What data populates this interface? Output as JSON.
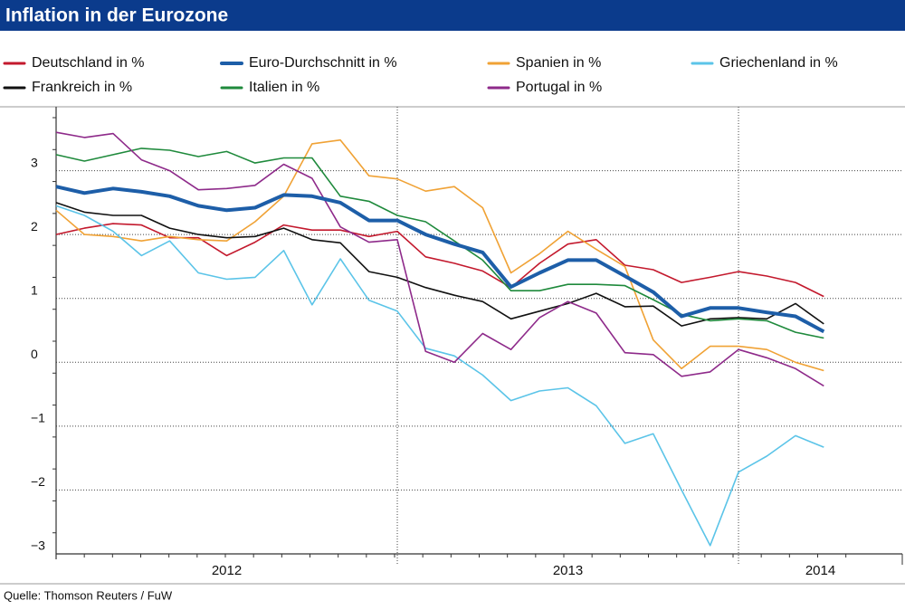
{
  "chart_data": {
    "type": "line",
    "title": "Inflation in der Eurozone",
    "source": "Quelle: Thomson Reuters / FuW",
    "legend_position": "top",
    "x": [
      2012,
      2012.083,
      2012.167,
      2012.25,
      2012.333,
      2012.417,
      2012.5,
      2012.583,
      2012.667,
      2012.75,
      2012.833,
      2012.917,
      2013,
      2013.083,
      2013.167,
      2013.25,
      2013.333,
      2013.417,
      2013.5,
      2013.583,
      2013.667,
      2013.75,
      2013.833,
      2013.917,
      2014,
      2014.083,
      2014.167,
      2014.25
    ],
    "xlim": [
      2012,
      2014.48
    ],
    "xticks": [
      2013,
      2014
    ],
    "year_labels": [
      {
        "value": 2012.5,
        "label": "2012"
      },
      {
        "value": 2013.5,
        "label": "2013"
      },
      {
        "value": 2014.24,
        "label": "2014"
      }
    ],
    "ylim": [
      -3,
      4
    ],
    "yticks": [
      {
        "value": -3,
        "label": "−3"
      },
      {
        "value": -2,
        "label": "−2"
      },
      {
        "value": -1,
        "label": "−1"
      },
      0,
      1,
      2,
      3
    ],
    "grid": true,
    "series": [
      {
        "name": "Deutschland in %",
        "color": "#c3192d",
        "width": 1.6,
        "values": [
          2.0,
          2.1,
          2.17,
          2.15,
          1.95,
          1.95,
          1.67,
          1.88,
          2.15,
          2.07,
          2.07,
          1.97,
          2.05,
          1.65,
          1.55,
          1.43,
          1.17,
          1.55,
          1.85,
          1.92,
          1.52,
          1.45,
          1.25,
          1.33,
          1.42,
          1.35,
          1.25,
          1.03
        ]
      },
      {
        "name": "Euro-Durchschnitt in %",
        "color": "#1d5ea8",
        "width": 4,
        "values": [
          2.75,
          2.65,
          2.72,
          2.67,
          2.6,
          2.45,
          2.38,
          2.42,
          2.62,
          2.6,
          2.5,
          2.22,
          2.22,
          2.0,
          1.85,
          1.72,
          1.18,
          1.4,
          1.6,
          1.6,
          1.35,
          1.1,
          0.72,
          0.85,
          0.85,
          0.78,
          0.72,
          0.48
        ]
      },
      {
        "name": "Spanien in %",
        "color": "#f0a235",
        "width": 1.6,
        "values": [
          2.38,
          2.0,
          1.97,
          1.9,
          1.97,
          1.92,
          1.9,
          2.2,
          2.6,
          3.42,
          3.48,
          2.92,
          2.87,
          2.68,
          2.75,
          2.42,
          1.4,
          1.7,
          2.05,
          1.77,
          1.5,
          0.35,
          -0.1,
          0.25,
          0.25,
          0.2,
          0.0,
          -0.13
        ]
      },
      {
        "name": "Griechenland in %",
        "color": "#5bc4e8",
        "width": 1.6,
        "values": [
          2.45,
          2.3,
          2.05,
          1.67,
          1.9,
          1.4,
          1.3,
          1.33,
          1.75,
          0.9,
          1.62,
          0.97,
          0.8,
          0.22,
          0.1,
          -0.2,
          -0.6,
          -0.45,
          -0.4,
          -0.68,
          -1.27,
          -1.12,
          -2.0,
          -2.87,
          -1.72,
          -1.47,
          -1.15,
          -1.33
        ]
      },
      {
        "name": "Frankreich in %",
        "color": "#111111",
        "width": 1.6,
        "values": [
          2.5,
          2.35,
          2.3,
          2.3,
          2.1,
          2.0,
          1.95,
          1.97,
          2.1,
          1.92,
          1.87,
          1.42,
          1.33,
          1.17,
          1.05,
          0.95,
          0.68,
          0.8,
          0.92,
          1.08,
          0.87,
          0.88,
          0.57,
          0.68,
          0.7,
          0.68,
          0.92,
          0.6
        ]
      },
      {
        "name": "Italien in %",
        "color": "#1f8a3c",
        "width": 1.6,
        "values": [
          3.25,
          3.15,
          3.25,
          3.35,
          3.32,
          3.22,
          3.3,
          3.12,
          3.2,
          3.2,
          2.6,
          2.52,
          2.3,
          2.2,
          1.9,
          1.6,
          1.12,
          1.12,
          1.22,
          1.22,
          1.2,
          0.98,
          0.75,
          0.65,
          0.68,
          0.65,
          0.47,
          0.38
        ]
      },
      {
        "name": "Portugal in %",
        "color": "#8e2a8a",
        "width": 1.6,
        "values": [
          3.6,
          3.52,
          3.58,
          3.17,
          3.0,
          2.7,
          2.72,
          2.77,
          3.1,
          2.88,
          2.12,
          1.88,
          1.92,
          0.17,
          0.0,
          0.45,
          0.2,
          0.7,
          0.95,
          0.77,
          0.15,
          0.12,
          -0.22,
          -0.15,
          0.2,
          0.07,
          -0.1,
          -0.37
        ]
      }
    ]
  }
}
